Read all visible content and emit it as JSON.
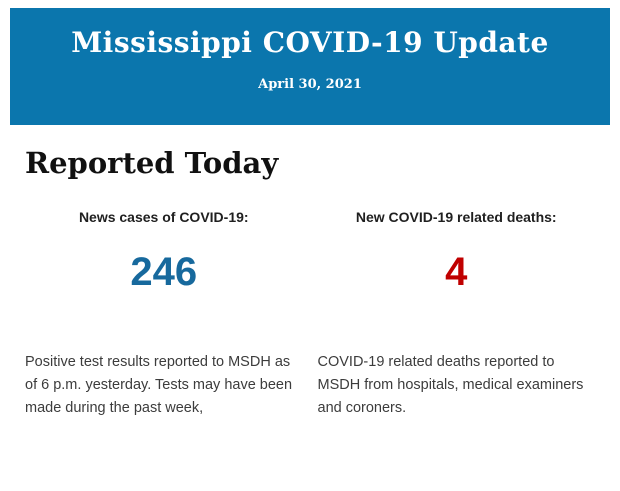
{
  "header": {
    "title": "Mississippi COVID-19 Update",
    "date": "April 30, 2021",
    "background_color": "#0b76ad",
    "text_color": "#ffffff"
  },
  "section": {
    "heading": "Reported Today"
  },
  "stats": [
    {
      "label": "News cases of COVID-19:",
      "value": "246",
      "value_color": "#17699d",
      "description": "Positive test results reported to MSDH as of 6 p.m. yesterday. Tests may have been made during the past week,"
    },
    {
      "label": "New COVID-19 related deaths:",
      "value": "4",
      "value_color": "#c00000",
      "description": "COVID-19 related deaths reported to MSDH from hospitals, medical examiners and coroners."
    }
  ]
}
